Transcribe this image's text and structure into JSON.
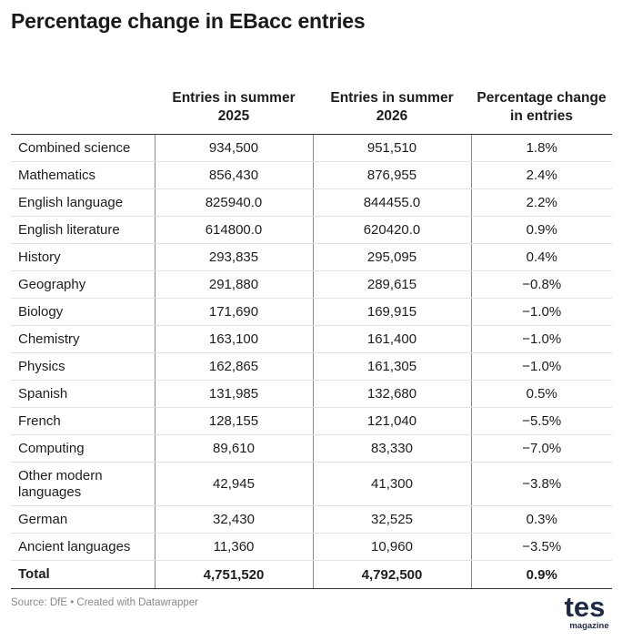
{
  "title": "Percentage change in EBacc entries",
  "chart_data": {
    "type": "table",
    "title": "Percentage change in EBacc entries",
    "columns": [
      "",
      "Entries in summer 2025",
      "Entries in summer 2026",
      "Percentage change in entries"
    ],
    "rows": [
      {
        "subject": "Combined science",
        "entries_2025": "934,500",
        "entries_2026": "951,510",
        "change": "1.8%"
      },
      {
        "subject": "Mathematics",
        "entries_2025": "856,430",
        "entries_2026": "876,955",
        "change": "2.4%"
      },
      {
        "subject": "English language",
        "entries_2025": "825940.0",
        "entries_2026": "844455.0",
        "change": "2.2%"
      },
      {
        "subject": "English literature",
        "entries_2025": "614800.0",
        "entries_2026": "620420.0",
        "change": "0.9%"
      },
      {
        "subject": "History",
        "entries_2025": "293,835",
        "entries_2026": "295,095",
        "change": "0.4%"
      },
      {
        "subject": "Geography",
        "entries_2025": "291,880",
        "entries_2026": "289,615",
        "change": "−0.8%"
      },
      {
        "subject": "Biology",
        "entries_2025": "171,690",
        "entries_2026": "169,915",
        "change": "−1.0%"
      },
      {
        "subject": "Chemistry",
        "entries_2025": "163,100",
        "entries_2026": "161,400",
        "change": "−1.0%"
      },
      {
        "subject": "Physics",
        "entries_2025": "162,865",
        "entries_2026": "161,305",
        "change": "−1.0%"
      },
      {
        "subject": "Spanish",
        "entries_2025": "131,985",
        "entries_2026": "132,680",
        "change": "0.5%"
      },
      {
        "subject": "French",
        "entries_2025": "128,155",
        "entries_2026": "121,040",
        "change": "−5.5%"
      },
      {
        "subject": "Computing",
        "entries_2025": "89,610",
        "entries_2026": "83,330",
        "change": "−7.0%"
      },
      {
        "subject": "Other modern languages",
        "entries_2025": "42,945",
        "entries_2026": "41,300",
        "change": "−3.8%"
      },
      {
        "subject": "German",
        "entries_2025": "32,430",
        "entries_2026": "32,525",
        "change": "0.3%"
      },
      {
        "subject": "Ancient languages",
        "entries_2025": "11,360",
        "entries_2026": "10,960",
        "change": "−3.5%"
      }
    ],
    "total": {
      "subject": "Total",
      "entries_2025": "4,751,520",
      "entries_2026": "4,792,500",
      "change": "0.9%"
    }
  },
  "footer": {
    "source": "Source: DfE • Created with Datawrapper"
  },
  "logo": {
    "name": "tes",
    "sub": "magazine"
  }
}
